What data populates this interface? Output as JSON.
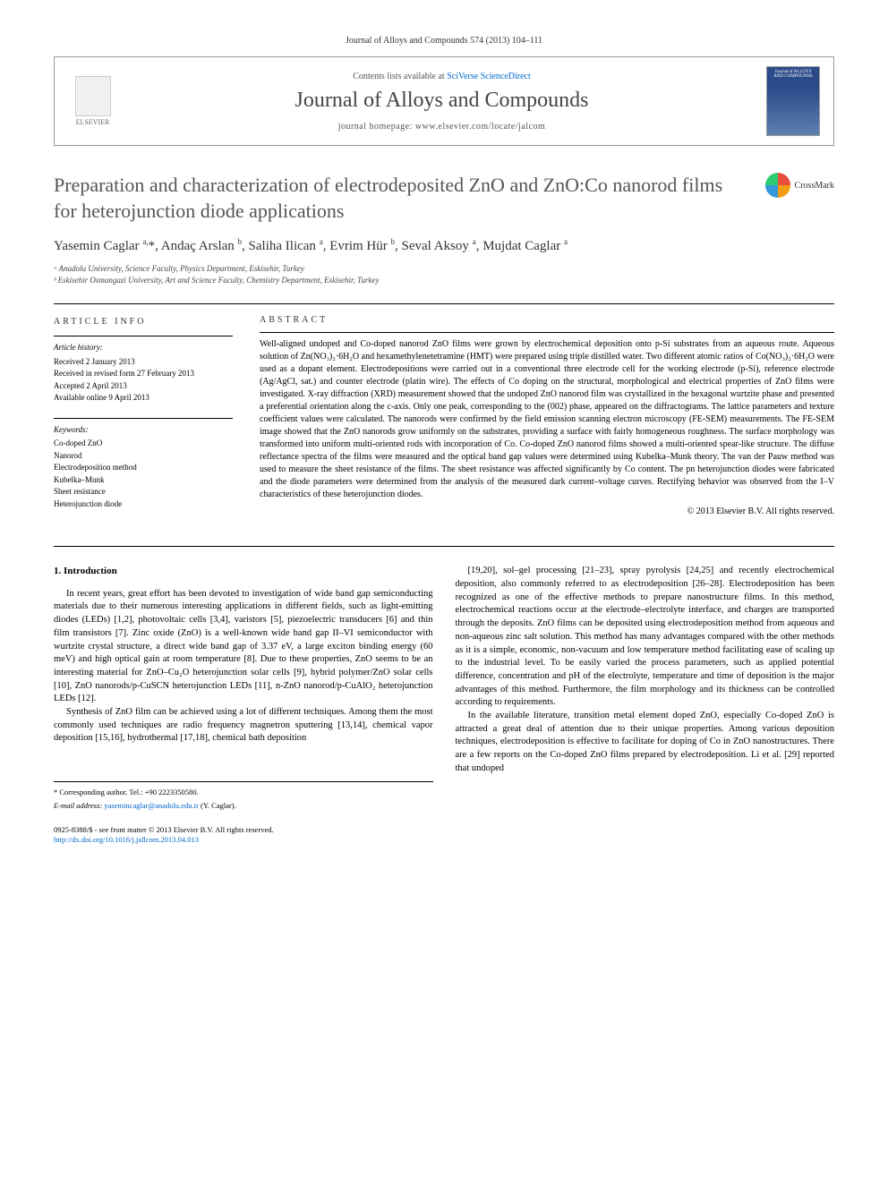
{
  "citation": "Journal of Alloys and Compounds 574 (2013) 104–111",
  "header": {
    "contents_prefix": "Contents lists available at ",
    "contents_link": "SciVerse ScienceDirect",
    "journal_name": "Journal of Alloys and Compounds",
    "homepage_prefix": "journal homepage: ",
    "homepage_url": "www.elsevier.com/locate/jalcom",
    "publisher": "ELSEVIER",
    "cover_text": "Journal of ALLOYS AND COMPOUNDS"
  },
  "crossmark_label": "CrossMark",
  "title": "Preparation and characterization of electrodeposited ZnO and ZnO:Co nanorod films for heterojunction diode applications",
  "authors_html": "Yasemin Caglar <sup>a,</sup>*, Andaç Arslan <sup>b</sup>, Saliha Ilican <sup>a</sup>, Evrim Hür <sup>b</sup>, Seval Aksoy <sup>a</sup>, Mujdat Caglar <sup>a</sup>",
  "affiliations": [
    "ᵃ Anadolu University, Science Faculty, Physics Department, Eskisehir, Turkey",
    "ᵇ Eskisehir Osmangazi University, Art and Science Faculty, Chemistry Department, Eskisehir, Turkey"
  ],
  "info": {
    "heading": "ARTICLE INFO",
    "history_heading": "Article history:",
    "history": [
      "Received 2 January 2013",
      "Received in revised form 27 February 2013",
      "Accepted 2 April 2013",
      "Available online 9 April 2013"
    ],
    "keywords_heading": "Keywords:",
    "keywords": [
      "Co-doped ZnO",
      "Nanorod",
      "Electrodeposition method",
      "Kubelka–Munk",
      "Sheet resistance",
      "Heterojunction diode"
    ]
  },
  "abstract": {
    "heading": "ABSTRACT",
    "text": "Well-aligned undoped and Co-doped nanorod ZnO films were grown by electrochemical deposition onto p-Si substrates from an aqueous route. Aqueous solution of Zn(NO₃)₂·6H₂O and hexamethylenetetramine (HMT) were prepared using triple distilled water. Two different atomic ratios of Co(NO₃)₂·6H₂O were used as a dopant element. Electrodepositions were carried out in a conventional three electrode cell for the working electrode (p-Si), reference electrode (Ag/AgCl, sat.) and counter electrode (platin wire). The effects of Co doping on the structural, morphological and electrical properties of ZnO films were investigated. X-ray diffraction (XRD) measurement showed that the undoped ZnO nanorod film was crystallized in the hexagonal wurtzite phase and presented a preferential orientation along the c-axis. Only one peak, corresponding to the (002) phase, appeared on the diffractograms. The lattice parameters and texture coefficient values were calculated. The nanorods were confirmed by the field emission scanning electron microscopy (FE-SEM) measurements. The FE-SEM image showed that the ZnO nanorods grow uniformly on the substrates, providing a surface with fairly homogeneous roughness. The surface morphology was transformed into uniform multi-oriented rods with incorporation of Co. Co-doped ZnO nanorod films showed a multi-oriented spear-like structure. The diffuse reflectance spectra of the films were measured and the optical band gap values were determined using Kubelka–Munk theory. The van der Pauw method was used to measure the sheet resistance of the films. The sheet resistance was affected significantly by Co content. The pn heterojunction diodes were fabricated and the diode parameters were determined from the analysis of the measured dark current–voltage curves. Rectifying behavior was observed from the I–V characteristics of these heterojunction diodes.",
    "copyright": "© 2013 Elsevier B.V. All rights reserved."
  },
  "body": {
    "section_heading": "1. Introduction",
    "col1_para1": "In recent years, great effort has been devoted to investigation of wide band gap semiconducting materials due to their numerous interesting applications in different fields, such as light-emitting diodes (LEDs) [1,2], photovoltaic cells [3,4], varistors [5], piezoelectric transducers [6] and thin film transistors [7]. Zinc oxide (ZnO) is a well-known wide band gap II–VI semiconductor with wurtzite crystal structure, a direct wide band gap of 3.37 eV, a large exciton binding energy (60 meV) and high optical gain at room temperature [8]. Due to these properties, ZnO seems to be an interesting material for ZnO–Cu₂O heterojunction solar cells [9], hybrid polymer/ZnO solar cells [10], ZnO nanorods/p-CuSCN heterojunction LEDs [11], n-ZnO nanorod/p-CuAlO₂ heterojunction LEDs [12].",
    "col1_para2": "Synthesis of ZnO film can be achieved using a lot of different techniques. Among them the most commonly used techniques are radio frequency magnetron sputtering [13,14], chemical vapor deposition [15,16], hydrothermal [17,18], chemical bath deposition",
    "col2_para1": "[19,20], sol–gel processing [21–23], spray pyrolysis [24,25] and recently electrochemical deposition, also commonly referred to as electrodeposition [26–28]. Electrodeposition has been recognized as one of the effective methods to prepare nanostructure films. In this method, electrochemical reactions occur at the electrode–electrolyte interface, and charges are transported through the deposits. ZnO films can be deposited using electrodeposition method from aqueous and non-aqueous zinc salt solution. This method has many advantages compared with the other methods as it is a simple, economic, non-vacuum and low temperature method facilitating ease of scaling up to the industrial level. To be easily varied the process parameters, such as applied potential difference, concentration and pH of the electrolyte, temperature and time of deposition is the major advantages of this method. Furthermore, the film morphology and its thickness can be controlled according to requirements.",
    "col2_para2": "In the available literature, transition metal element doped ZnO, especially Co-doped ZnO is attracted a great deal of attention due to their unique properties. Among various deposition techniques, electrodeposition is effective to facilitate for doping of Co in ZnO nanostructures. There are a few reports on the Co-doped ZnO films prepared by electrodeposition. Li et al. [29] reported that undoped"
  },
  "footer": {
    "corresponding": "* Corresponding author. Tel.: +90 2223350580.",
    "email_label": "E-mail address: ",
    "email": "yasemincaglar@anadolu.edu.tr",
    "email_suffix": " (Y. Caglar).",
    "issn": "0925-8388/$ - see front matter © 2013 Elsevier B.V. All rights reserved.",
    "doi": "http://dx.doi.org/10.1016/j.jallcom.2013.04.013"
  },
  "colors": {
    "link": "#0066cc",
    "text": "#000000",
    "muted": "#555555",
    "title_gray": "#555555"
  }
}
